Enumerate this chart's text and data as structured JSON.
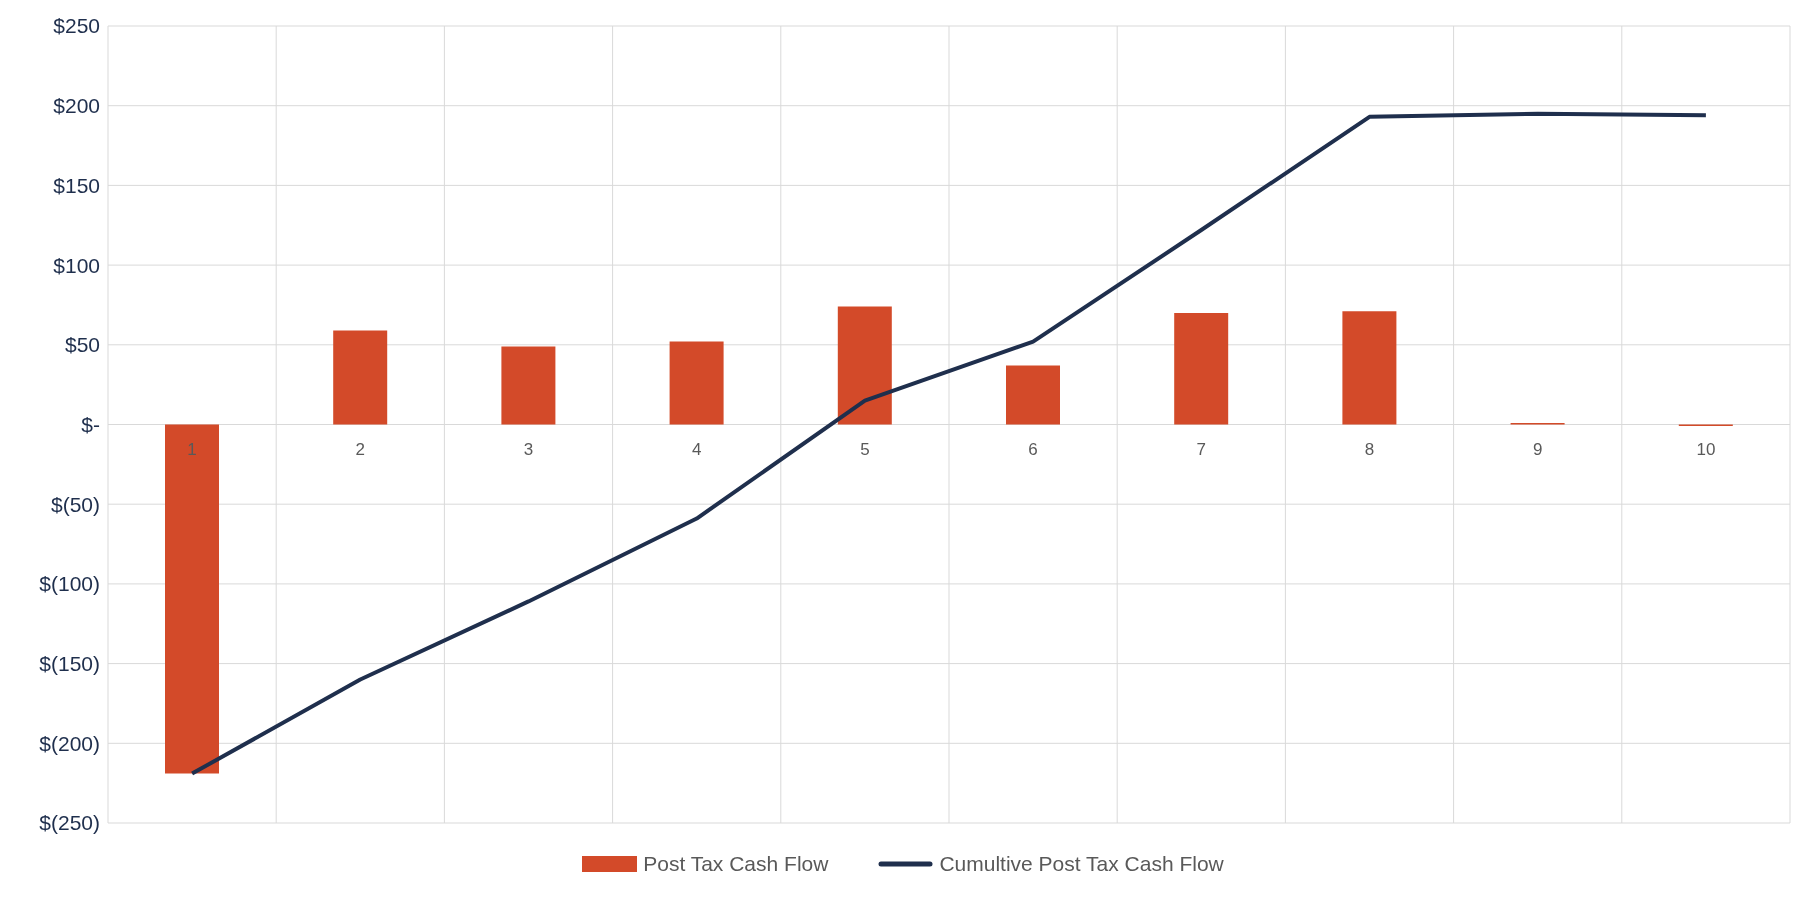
{
  "chart_data": {
    "type": "bar",
    "categories": [
      "1",
      "2",
      "3",
      "4",
      "5",
      "6",
      "7",
      "8",
      "9",
      "10"
    ],
    "series": [
      {
        "name": "Post Tax Cash Flow",
        "color": "#d34a29",
        "values": [
          -219,
          59,
          49,
          52,
          74,
          37,
          70,
          71,
          1,
          -1
        ]
      },
      {
        "name": "Cumultive Post Tax Cash Flow",
        "type": "line",
        "color": "#1f2f4d",
        "values": [
          -219,
          -160,
          -111,
          -59,
          15,
          52,
          122,
          193,
          195,
          194
        ]
      }
    ],
    "ylim": [
      -250,
      250
    ],
    "yticks": [
      {
        "value": -250,
        "label": "$(250)"
      },
      {
        "value": -200,
        "label": "$(200)"
      },
      {
        "value": -150,
        "label": "$(150)"
      },
      {
        "value": -100,
        "label": "$(100)"
      },
      {
        "value": -50,
        "label": "$(50)"
      },
      {
        "value": 0,
        "label": "$-"
      },
      {
        "value": 50,
        "label": "$50"
      },
      {
        "value": 100,
        "label": "$100"
      },
      {
        "value": 150,
        "label": "$150"
      },
      {
        "value": 200,
        "label": "$200"
      },
      {
        "value": 250,
        "label": "$250"
      }
    ],
    "grid": true,
    "legend": "bottom",
    "line_style": "solid",
    "marker": "none"
  }
}
